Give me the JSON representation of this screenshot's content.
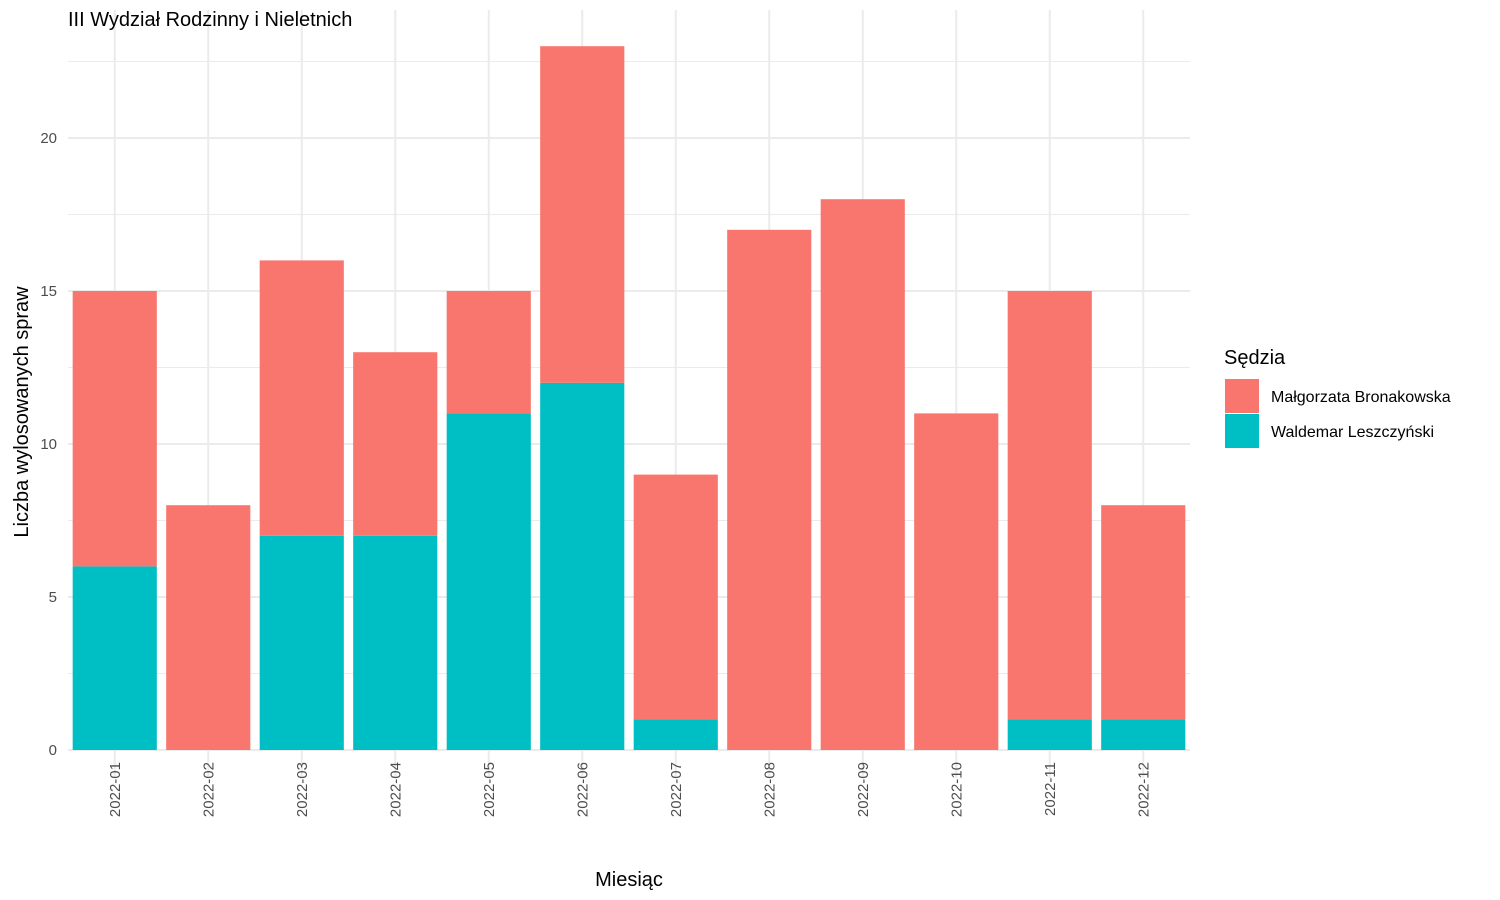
{
  "chart_data": {
    "type": "bar",
    "stacked": true,
    "title": "III Wydział Rodzinny i Nieletnich",
    "xlabel": "Miesiąc",
    "ylabel": "Liczba wylosowanych spraw",
    "categories": [
      "2022-01",
      "2022-02",
      "2022-03",
      "2022-04",
      "2022-05",
      "2022-06",
      "2022-07",
      "2022-08",
      "2022-09",
      "2022-10",
      "2022-11",
      "2022-12"
    ],
    "series": [
      {
        "name": "Małgorzata Bronakowska",
        "color": "#F8766D",
        "values": [
          9,
          8,
          9,
          6,
          4,
          11,
          8,
          17,
          18,
          11,
          14,
          7
        ]
      },
      {
        "name": "Waldemar Leszczyński",
        "color": "#00BFC4",
        "values": [
          6,
          0,
          7,
          7,
          11,
          12,
          1,
          0,
          0,
          0,
          1,
          1
        ]
      }
    ],
    "ylim": [
      0,
      23
    ],
    "yticks": [
      0,
      5,
      10,
      15,
      20
    ],
    "grid": true,
    "legend": {
      "title": "Sędzia",
      "position": "right"
    }
  }
}
